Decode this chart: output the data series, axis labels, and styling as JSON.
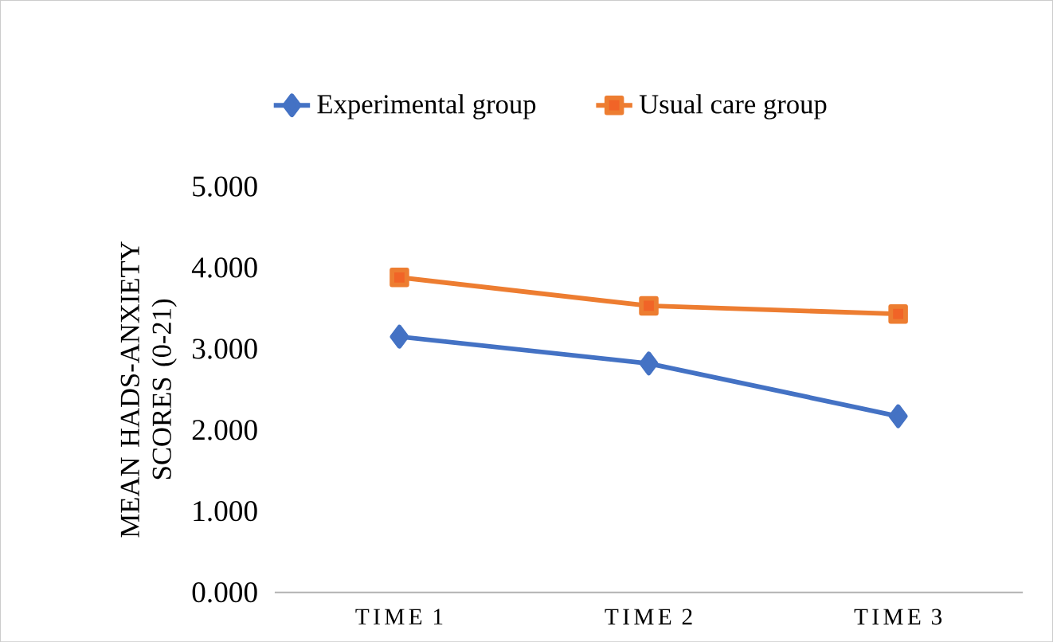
{
  "chart_data": {
    "type": "line",
    "ylabel": "MEAN HADS-ANXIETY SCORES (0-21)",
    "categories": [
      "TIME 1",
      "TIME 2",
      "TIME 3"
    ],
    "series": [
      {
        "name": "Experimental group",
        "color": "#4472c4",
        "marker": "diamond",
        "values": [
          3.15,
          2.82,
          2.17
        ]
      },
      {
        "name": "Usual care group",
        "color": "#ed7d31",
        "marker": "square",
        "values": [
          3.88,
          3.53,
          3.43
        ]
      }
    ],
    "ylim": [
      0,
      5
    ],
    "yticks": [
      {
        "value": 0,
        "label": "0.000"
      },
      {
        "value": 1,
        "label": "1.000"
      },
      {
        "value": 2,
        "label": "2.000"
      },
      {
        "value": 3,
        "label": "3.000"
      },
      {
        "value": 4,
        "label": "4.000"
      },
      {
        "value": 5,
        "label": "5.000"
      }
    ],
    "grid": false,
    "legend": "top"
  }
}
